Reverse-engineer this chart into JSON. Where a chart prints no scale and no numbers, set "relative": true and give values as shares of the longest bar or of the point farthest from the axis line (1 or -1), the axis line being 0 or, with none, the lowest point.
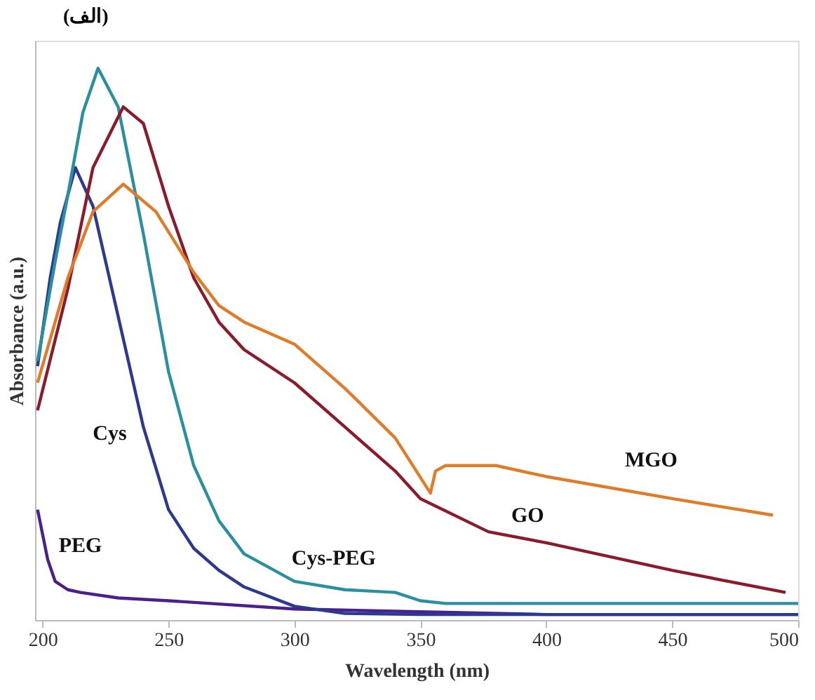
{
  "chart_data": {
    "type": "line",
    "title": "(الف)",
    "xlabel": "Wavelength (nm)",
    "ylabel": "Absorbance (a.u.)",
    "relative": true,
    "xlim": [
      197,
      500
    ],
    "xticks": [
      200,
      250,
      300,
      350,
      400,
      450,
      500
    ],
    "grid": false,
    "legend": false,
    "marker": "none",
    "line_style": "solid",
    "series": [
      {
        "name": "PEG",
        "color": "#4b1f8c",
        "x": [
          198,
          202,
          205,
          210,
          215,
          230,
          250,
          300,
          350,
          400,
          450,
          500
        ],
        "values": [
          0.2,
          0.11,
          0.07,
          0.055,
          0.05,
          0.04,
          0.035,
          0.02,
          0.015,
          0.01,
          0.01,
          0.01
        ]
      },
      {
        "name": "Cys",
        "color": "#2b3990",
        "x": [
          198,
          203,
          207,
          213,
          220,
          230,
          240,
          250,
          260,
          270,
          280,
          300,
          320,
          350,
          400,
          500
        ],
        "values": [
          0.46,
          0.62,
          0.72,
          0.82,
          0.75,
          0.55,
          0.35,
          0.2,
          0.13,
          0.09,
          0.06,
          0.025,
          0.012,
          0.01,
          0.01,
          0.01
        ]
      },
      {
        "name": "Cys-PEG",
        "color": "#2a8fa0",
        "x": [
          198,
          205,
          210,
          216,
          222,
          230,
          240,
          250,
          260,
          270,
          280,
          300,
          320,
          340,
          350,
          360,
          400,
          450,
          500
        ],
        "values": [
          0.47,
          0.65,
          0.77,
          0.92,
          1.0,
          0.93,
          0.7,
          0.45,
          0.28,
          0.18,
          0.12,
          0.07,
          0.055,
          0.05,
          0.035,
          0.03,
          0.03,
          0.03,
          0.03
        ]
      },
      {
        "name": "GO",
        "color": "#8b1a2b",
        "x": [
          198,
          210,
          220,
          232,
          240,
          250,
          260,
          270,
          280,
          300,
          320,
          340,
          350,
          377,
          400,
          450,
          495
        ],
        "values": [
          0.38,
          0.6,
          0.82,
          0.93,
          0.9,
          0.75,
          0.62,
          0.54,
          0.49,
          0.43,
          0.35,
          0.27,
          0.22,
          0.16,
          0.14,
          0.09,
          0.05
        ]
      },
      {
        "name": "MGO",
        "color": "#e07b2a",
        "x": [
          198,
          210,
          220,
          232,
          245,
          260,
          270,
          280,
          300,
          320,
          340,
          354,
          356,
          360,
          380,
          400,
          450,
          490
        ],
        "values": [
          0.43,
          0.62,
          0.74,
          0.79,
          0.74,
          0.63,
          0.57,
          0.54,
          0.5,
          0.42,
          0.33,
          0.23,
          0.27,
          0.28,
          0.28,
          0.26,
          0.22,
          0.19
        ]
      }
    ]
  }
}
